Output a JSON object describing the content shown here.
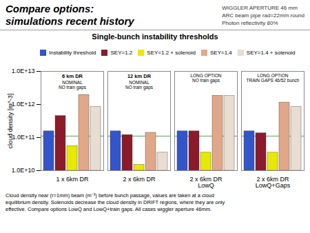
{
  "chart_data": {
    "type": "bar",
    "suptitle": [
      "Compare options:",
      "simulations recent history"
    ],
    "title": "Single-bunch instability thresholds",
    "ylabel": "cloud density [m^-3]",
    "categories": [
      "1 x 6km DR",
      "2 x 6km DR",
      "2 x 6km DR\nLowQ",
      "2 x 6km DR\nLowQ+Gaps"
    ],
    "series": [
      {
        "name": "Instability threshold",
        "color": "#3355cc",
        "values": [
          155000000000.0,
          155000000000.0,
          155000000000.0,
          155000000000.0
        ]
      },
      {
        "name": "SEY=1.2",
        "color": "#8b1a2a",
        "values": [
          450000000000.0,
          120000000000.0,
          155000000000.0,
          135000000000.0
        ]
      },
      {
        "name": "SEY=1.2 + solenoid",
        "color": "#e8e800",
        "values": [
          55000000000.0,
          15000000000.0,
          35000000000.0,
          35000000000.0
        ]
      },
      {
        "name": "SEY=1.4",
        "color": "#e0a888",
        "values": [
          1950000000000.0,
          140000000000.0,
          1850000000000.0,
          1150000000000.0
        ]
      },
      {
        "name": "SEY=1.4 + solenoid",
        "color": "#e8ddd0",
        "values": [
          850000000000.0,
          35000000000.0,
          1800000000000.0,
          850000000000.0
        ]
      }
    ],
    "log": "y",
    "ylim": [
      10000000000.0,
      10000000000000.0
    ],
    "yticks": [
      {
        "value": 10000000000.0,
        "label": "1.0E+10"
      },
      {
        "value": 100000000000.0,
        "label": "1.0E+11"
      },
      {
        "value": 1000000000000.0,
        "label": "1.0E+12"
      },
      {
        "value": 10000000000000.0,
        "label": "1.0E+13"
      }
    ],
    "grid": false,
    "legend": "top",
    "reference_line": {
      "value": 110000000000.0,
      "color": "#88bb88"
    },
    "group_labels": [
      [
        "6 km DR",
        "NOMINAL\nNO train gaps"
      ],
      [
        "12 km DR",
        "NOMINAL\nNO train gaps"
      ],
      [
        "LONG OPTION\nNO train gaps"
      ],
      [
        "LONG OPTION\nTRAIN GAPS 46/52 bunch"
      ]
    ],
    "annotations": [
      "WIGGLER APERTURE 46 mm\nARC beam pipe rad=22mm round\nPhoton reflectivity 80%"
    ],
    "caption": "Cloud density near (r=1mm) beam (m⁻³) before bunch passage, values are taken at a cloud\nequilibrium density. Solenoids decrease the cloud density in DRIFT regions, where they are only\neffective. Compare options LowQ and LowQ+train gaps. All cases wiggler aperture 46mm."
  }
}
